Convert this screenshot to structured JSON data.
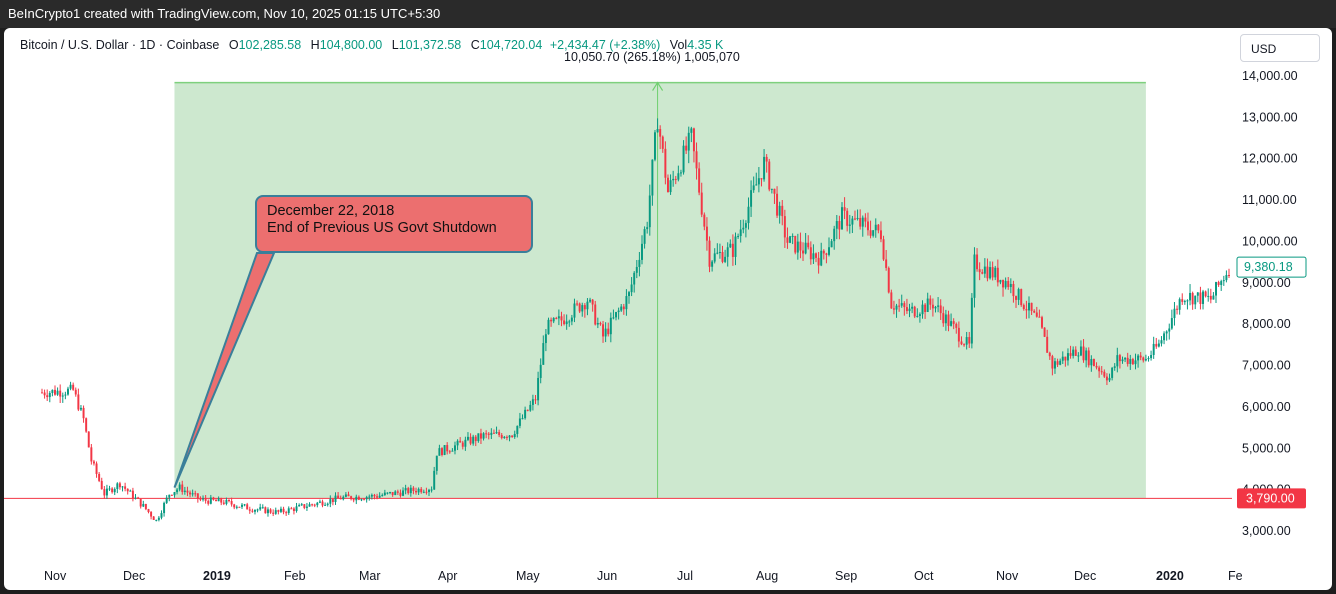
{
  "header": {
    "title": "BeInCrypto1 created with TradingView.com, Nov 10, 2025 01:15 UTC+5:30"
  },
  "legend": {
    "symbol": "Bitcoin / U.S. Dollar · 1D · Coinbase",
    "o_label": "O",
    "o_value": "102,285.58",
    "h_label": "H",
    "h_value": "104,800.00",
    "l_label": "L",
    "l_value": "101,372.58",
    "c_label": "C",
    "c_value": "104,720.04",
    "change": "+2,434.47 (+2.38%)",
    "vol_label": "Vol",
    "vol_value": "4.35 K"
  },
  "currency_button": "USD",
  "measure_label": "10,050.70 (265.18%) 1,005,070",
  "callout": {
    "line1": "December 22, 2018",
    "line2": "End of Previous US Govt Shutdown"
  },
  "colors": {
    "up": "#089981",
    "down": "#f23645",
    "range_fill": "#cde8cf",
    "range_line": "#7ed07e",
    "callout_fill": "#ec6f6f",
    "callout_border": "#3a7f9a"
  },
  "chart_data": {
    "type": "candlestick",
    "title": "",
    "xlabel": "",
    "ylabel": "",
    "ylim": [
      2600,
      14600
    ],
    "y_ticks": [
      "3,000.00",
      "4,000.00",
      "5,000.00",
      "6,000.00",
      "7,000.00",
      "8,000.00",
      "9,000.00",
      "10,000.00",
      "11,000.00",
      "12,000.00",
      "13,000.00",
      "14,000.00"
    ],
    "x_ticks": [
      "Nov",
      "Dec",
      "2019",
      "Feb",
      "Mar",
      "Apr",
      "May",
      "Jun",
      "Jul",
      "Aug",
      "Sep",
      "Oct",
      "Nov",
      "Dec",
      "2020",
      "Fe"
    ],
    "price_path": [
      [
        "2018-11-01",
        6350
      ],
      [
        "2018-11-13",
        6400
      ],
      [
        "2018-11-17",
        5700
      ],
      [
        "2018-11-20",
        4700
      ],
      [
        "2018-11-25",
        3900
      ],
      [
        "2018-12-01",
        4150
      ],
      [
        "2018-12-10",
        3600
      ],
      [
        "2018-12-15",
        3250
      ],
      [
        "2018-12-20",
        3900
      ],
      [
        "2018-12-24",
        4050
      ],
      [
        "2019-01-01",
        3750
      ],
      [
        "2019-01-10",
        3700
      ],
      [
        "2019-01-20",
        3550
      ],
      [
        "2019-01-31",
        3450
      ],
      [
        "2019-02-10",
        3600
      ],
      [
        "2019-02-24",
        3800
      ],
      [
        "2019-03-10",
        3850
      ],
      [
        "2019-03-31",
        4050
      ],
      [
        "2019-04-02",
        4900
      ],
      [
        "2019-04-20",
        5300
      ],
      [
        "2019-05-01",
        5350
      ],
      [
        "2019-05-10",
        6200
      ],
      [
        "2019-05-14",
        7900
      ],
      [
        "2019-05-20",
        8100
      ],
      [
        "2019-05-30",
        8600
      ],
      [
        "2019-06-05",
        7700
      ],
      [
        "2019-06-15",
        8700
      ],
      [
        "2019-06-22",
        10500
      ],
      [
        "2019-06-26",
        13000
      ],
      [
        "2019-06-30",
        11200
      ],
      [
        "2019-07-09",
        12500
      ],
      [
        "2019-07-16",
        9600
      ],
      [
        "2019-07-25",
        9800
      ],
      [
        "2019-08-06",
        11900
      ],
      [
        "2019-08-15",
        10000
      ],
      [
        "2019-08-28",
        9600
      ],
      [
        "2019-09-05",
        10600
      ],
      [
        "2019-09-20",
        10200
      ],
      [
        "2019-09-24",
        8500
      ],
      [
        "2019-10-01",
        8300
      ],
      [
        "2019-10-10",
        8500
      ],
      [
        "2019-10-24",
        7450
      ],
      [
        "2019-10-26",
        9500
      ],
      [
        "2019-11-08",
        9000
      ],
      [
        "2019-11-20",
        8000
      ],
      [
        "2019-11-25",
        7000
      ],
      [
        "2019-12-05",
        7400
      ],
      [
        "2019-12-17",
        6700
      ],
      [
        "2019-12-20",
        7150
      ],
      [
        "2019-12-31",
        7150
      ],
      [
        "2020-01-05",
        7500
      ],
      [
        "2020-01-14",
        8700
      ],
      [
        "2020-01-25",
        8600
      ],
      [
        "2020-02-01",
        9380
      ]
    ],
    "annotations": {
      "last_price": "9,380.18",
      "horizontal_level": "3,790.00",
      "range_start": "2018-12-22",
      "range_end": "2019-12-31",
      "range_low": 3790,
      "range_high": 13840,
      "peak_date": "2019-06-26"
    }
  }
}
